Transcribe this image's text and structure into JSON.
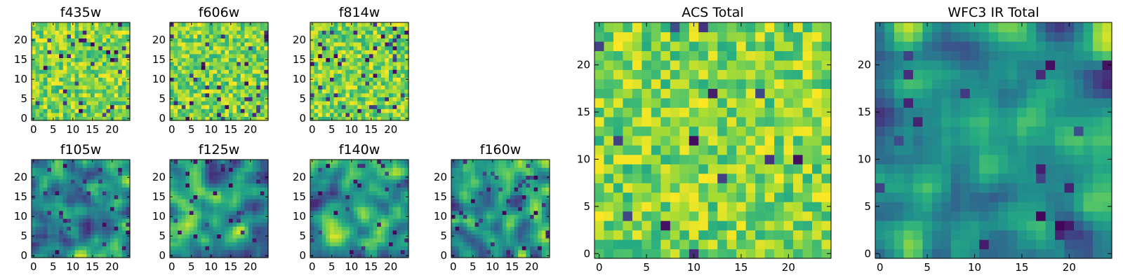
{
  "figure": {
    "panel_count": 9,
    "pixels_per_side": 25
  },
  "chart_data": [
    {
      "type": "heatmap",
      "title": "f435w",
      "colormap": "viridis",
      "smoothness": "noisy",
      "xticks": [
        "0",
        "5",
        "10",
        "15",
        "20"
      ],
      "yticks": [
        "0",
        "5",
        "10",
        "15",
        "20"
      ],
      "xlim": [
        0,
        25
      ],
      "ylim": [
        0,
        25
      ],
      "dark_fraction": 0.05,
      "seed": 11
    },
    {
      "type": "heatmap",
      "title": "f606w",
      "colormap": "viridis",
      "smoothness": "noisy",
      "xticks": [
        "0",
        "5",
        "10",
        "15",
        "20"
      ],
      "yticks": [
        "0",
        "5",
        "10",
        "15",
        "20"
      ],
      "xlim": [
        0,
        25
      ],
      "ylim": [
        0,
        25
      ],
      "dark_fraction": 0.06,
      "seed": 23
    },
    {
      "type": "heatmap",
      "title": "f814w",
      "colormap": "viridis",
      "smoothness": "noisy",
      "xticks": [
        "0",
        "5",
        "10",
        "15",
        "20"
      ],
      "yticks": [
        "0",
        "5",
        "10",
        "15",
        "20"
      ],
      "xlim": [
        0,
        25
      ],
      "ylim": [
        0,
        25
      ],
      "dark_fraction": 0.07,
      "seed": 37
    },
    {
      "type": "heatmap",
      "title": "f105w",
      "colormap": "viridis",
      "smoothness": "smooth",
      "xticks": [
        "0",
        "5",
        "10",
        "15",
        "20"
      ],
      "yticks": [
        "0",
        "5",
        "10",
        "15",
        "20"
      ],
      "xlim": [
        0,
        25
      ],
      "ylim": [
        0,
        25
      ],
      "dark_fraction": 0.05,
      "seed": 41
    },
    {
      "type": "heatmap",
      "title": "f125w",
      "colormap": "viridis",
      "smoothness": "smooth",
      "xticks": [
        "0",
        "5",
        "10",
        "15",
        "20"
      ],
      "yticks": [
        "0",
        "5",
        "10",
        "15",
        "20"
      ],
      "xlim": [
        0,
        25
      ],
      "ylim": [
        0,
        25
      ],
      "dark_fraction": 0.05,
      "seed": 53
    },
    {
      "type": "heatmap",
      "title": "f140w",
      "colormap": "viridis",
      "smoothness": "smooth",
      "xticks": [
        "0",
        "5",
        "10",
        "15",
        "20"
      ],
      "yticks": [
        "0",
        "5",
        "10",
        "15",
        "20"
      ],
      "xlim": [
        0,
        25
      ],
      "ylim": [
        0,
        25
      ],
      "dark_fraction": 0.04,
      "seed": 67
    },
    {
      "type": "heatmap",
      "title": "f160w",
      "colormap": "viridis",
      "smoothness": "smooth",
      "xticks": [
        "0",
        "5",
        "10",
        "15",
        "20"
      ],
      "yticks": [
        "0",
        "5",
        "10",
        "15",
        "20"
      ],
      "xlim": [
        0,
        25
      ],
      "ylim": [
        0,
        25
      ],
      "dark_fraction": 0.06,
      "seed": 79
    },
    {
      "type": "heatmap",
      "title": "ACS Total",
      "colormap": "viridis",
      "smoothness": "noisy",
      "xticks": [
        "0",
        "5",
        "10",
        "15",
        "20"
      ],
      "yticks": [
        "0",
        "5",
        "10",
        "15",
        "20"
      ],
      "xlim": [
        0,
        25
      ],
      "ylim": [
        0,
        25
      ],
      "dark_fraction": 0.02,
      "seed": 97
    },
    {
      "type": "heatmap",
      "title": "WFC3 IR Total",
      "colormap": "viridis",
      "smoothness": "smooth",
      "xticks": [
        "0",
        "5",
        "10",
        "15",
        "20"
      ],
      "yticks": [
        "0",
        "5",
        "10",
        "15",
        "20"
      ],
      "xlim": [
        0,
        25
      ],
      "ylim": [
        0,
        25
      ],
      "dark_fraction": 0.03,
      "seed": 113
    }
  ]
}
